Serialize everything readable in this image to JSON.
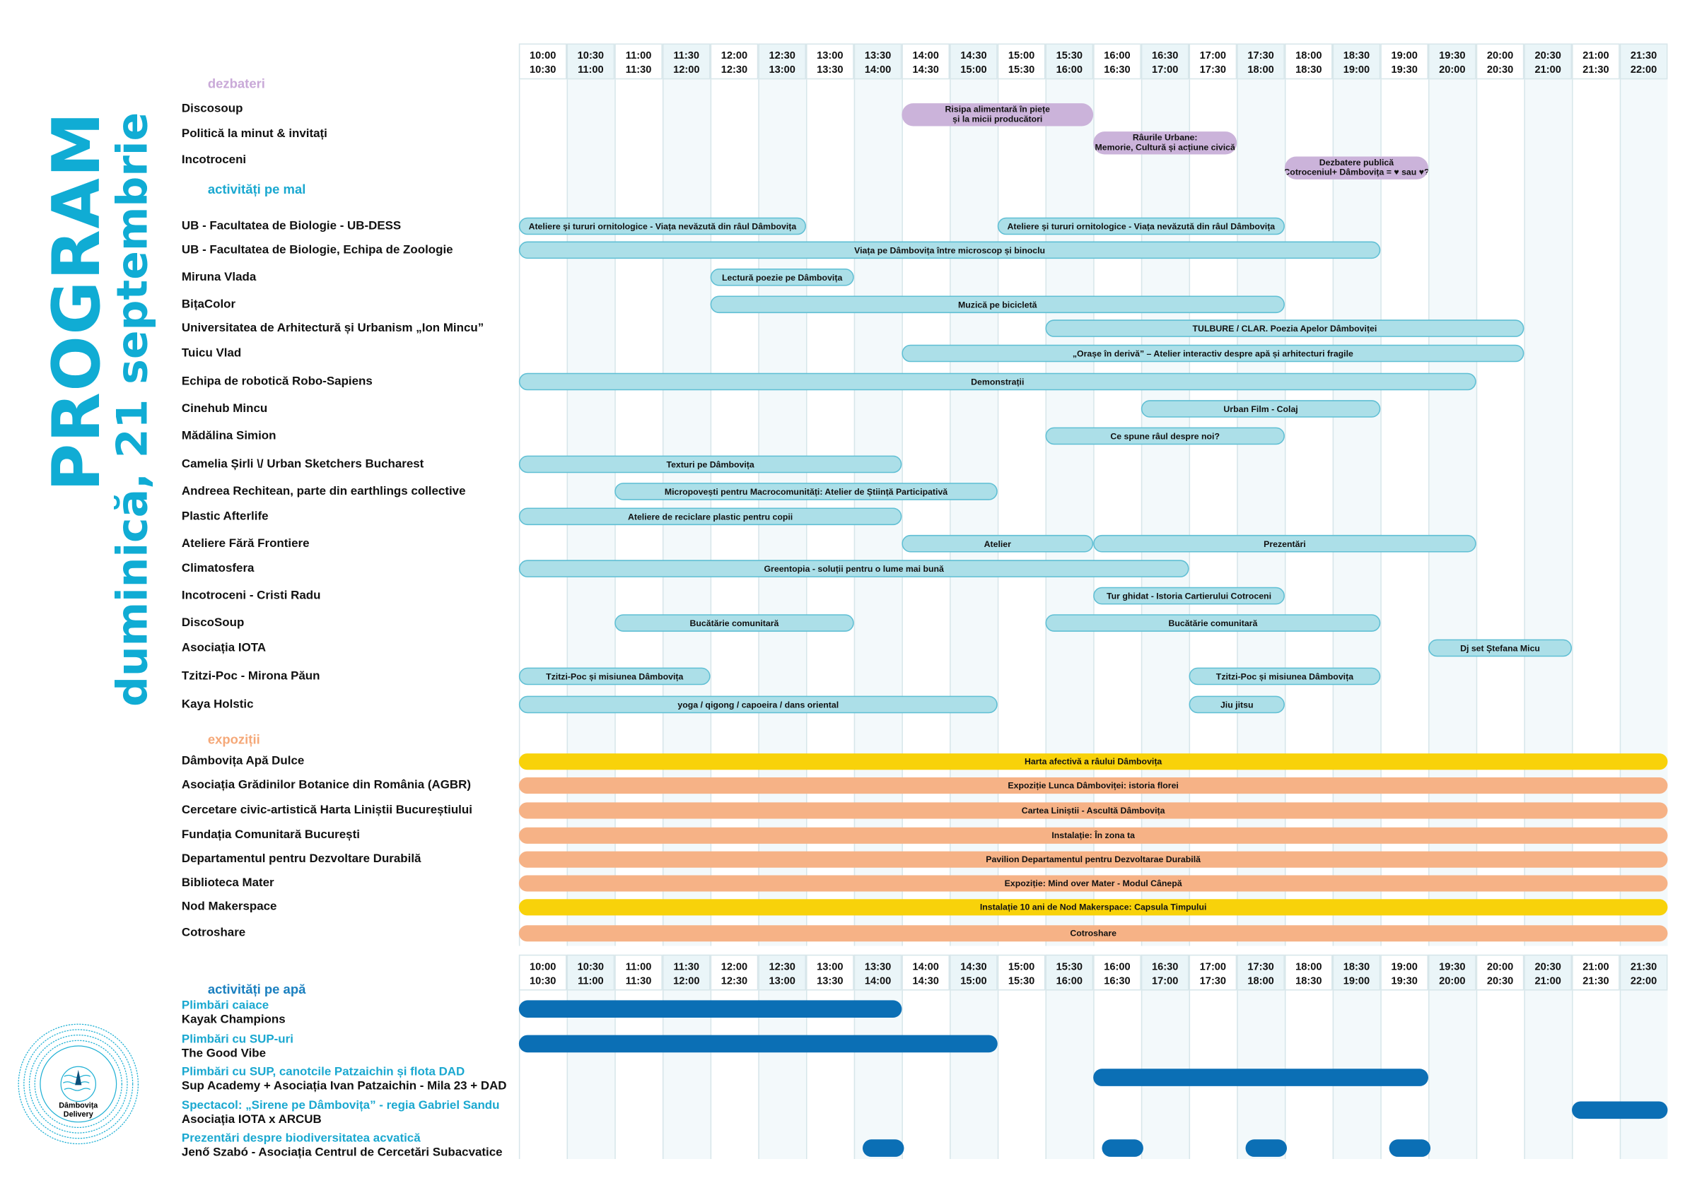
{
  "title": "PROGRAM",
  "subtitle": "duminică, 21 septembrie",
  "logo": {
    "text_line1": "Dâmbovița",
    "text_line2": "Delivery"
  },
  "colors": {
    "accent": "#10acd4",
    "purple": "#cbb3da",
    "blue": "#acdfe8",
    "yellow": "#f8d20a",
    "orange": "#f6b286",
    "water": "#0b6fb5"
  },
  "time_slots": [
    {
      "from": "10:00",
      "to": "10:30"
    },
    {
      "from": "10:30",
      "to": "11:00"
    },
    {
      "from": "11:00",
      "to": "11:30"
    },
    {
      "from": "11:30",
      "to": "12:00"
    },
    {
      "from": "12:00",
      "to": "12:30"
    },
    {
      "from": "12:30",
      "to": "13:00"
    },
    {
      "from": "13:00",
      "to": "13:30"
    },
    {
      "from": "13:30",
      "to": "14:00"
    },
    {
      "from": "14:00",
      "to": "14:30"
    },
    {
      "from": "14:30",
      "to": "15:00"
    },
    {
      "from": "15:00",
      "to": "15:30"
    },
    {
      "from": "15:30",
      "to": "16:00"
    },
    {
      "from": "16:00",
      "to": "16:30"
    },
    {
      "from": "16:30",
      "to": "17:00"
    },
    {
      "from": "17:00",
      "to": "17:30"
    },
    {
      "from": "17:30",
      "to": "18:00"
    },
    {
      "from": "18:00",
      "to": "18:30"
    },
    {
      "from": "18:30",
      "to": "19:00"
    },
    {
      "from": "19:00",
      "to": "19:30"
    },
    {
      "from": "19:30",
      "to": "20:00"
    },
    {
      "from": "20:00",
      "to": "20:30"
    },
    {
      "from": "20:30",
      "to": "21:00"
    },
    {
      "from": "21:00",
      "to": "21:30"
    },
    {
      "from": "21:30",
      "to": "22:00"
    }
  ],
  "sections": [
    {
      "title": "dezbateri",
      "color": "#c9a9d8",
      "style": "purple",
      "rows": [
        {
          "label": "Discosoup",
          "events": [
            {
              "name": "Risipa alimentară în piețe\nși la micii producători",
              "start": "14:00",
              "end": "16:00"
            }
          ]
        },
        {
          "label": "Politică la minut & invitați",
          "events": [
            {
              "name": "Râurile Urbane:\nMemorie, Cultură și acțiune civică",
              "start": "16:00",
              "end": "17:30"
            }
          ]
        },
        {
          "label": "Incotroceni",
          "events": [
            {
              "name": "Dezbatere publică\nCotroceniul+ Dâmbovița = ♥ sau ♥?",
              "start": "18:00",
              "end": "19:30"
            }
          ]
        }
      ]
    },
    {
      "title": "activități pe mal",
      "color": "#1aa8d0",
      "style": "blue",
      "rows": [
        {
          "label": "UB - Facultatea de Biologie - UB-DESS",
          "events": [
            {
              "name": "Ateliere și tururi ornitologice - Viața nevăzută din râul Dâmbovița",
              "start": "10:00",
              "end": "13:00"
            },
            {
              "name": "Ateliere și tururi ornitologice - Viața nevăzută din râul Dâmbovița",
              "start": "15:00",
              "end": "18:00"
            }
          ]
        },
        {
          "label": "UB - Facultatea de Biologie, Echipa de Zoologie",
          "events": [
            {
              "name": "Viața pe Dâmbovița între microscop și binoclu",
              "start": "10:00",
              "end": "19:00"
            }
          ]
        },
        {
          "label": "Miruna Vlada",
          "events": [
            {
              "name": "Lectură poezie pe Dâmbovița",
              "start": "12:00",
              "end": "13:30"
            }
          ]
        },
        {
          "label": "BițaColor",
          "events": [
            {
              "name": "Muzică pe bicicletă",
              "start": "12:00",
              "end": "18:00"
            }
          ]
        },
        {
          "label": "Universitatea de Arhitectură și Urbanism „Ion Mincu”",
          "events": [
            {
              "name": "TULBURE / CLAR. Poezia Apelor Dâmboviței",
              "start": "15:30",
              "end": "20:30"
            }
          ]
        },
        {
          "label": "Tuicu Vlad",
          "events": [
            {
              "name": "„Orașe în derivă” – Atelier interactiv despre apă și arhitecturi fragile",
              "start": "14:00",
              "end": "20:30"
            }
          ]
        },
        {
          "label": "Echipa de robotică Robo-Sapiens",
          "events": [
            {
              "name": "Demonstrații",
              "start": "10:00",
              "end": "20:00"
            }
          ]
        },
        {
          "label": "Cinehub Mincu",
          "events": [
            {
              "name": "Urban Film - Colaj",
              "start": "16:30",
              "end": "19:00"
            }
          ]
        },
        {
          "label": "Mădălina Simion",
          "events": [
            {
              "name": "Ce spune râul despre noi?",
              "start": "15:30",
              "end": "18:00"
            }
          ]
        },
        {
          "label": "Camelia Șirli \\/ Urban Sketchers Bucharest",
          "events": [
            {
              "name": "Texturi pe Dâmbovița",
              "start": "10:00",
              "end": "14:00"
            }
          ]
        },
        {
          "label": "Andreea Rechitean, parte din earthlings collective",
          "events": [
            {
              "name": "Micropovești pentru Macrocomunități: Atelier de Știință Participativă",
              "start": "11:00",
              "end": "15:00"
            }
          ]
        },
        {
          "label": "Plastic Afterlife",
          "events": [
            {
              "name": "Ateliere de reciclare plastic pentru copii",
              "start": "10:00",
              "end": "14:00"
            }
          ]
        },
        {
          "label": "Ateliere Fără Frontiere",
          "events": [
            {
              "name": "Atelier",
              "start": "14:00",
              "end": "16:00"
            },
            {
              "name": "Prezentări",
              "start": "16:00",
              "end": "20:00"
            }
          ]
        },
        {
          "label": "Climatosfera",
          "events": [
            {
              "name": "Greentopia - soluții pentru o lume mai bună",
              "start": "10:00",
              "end": "17:00"
            }
          ]
        },
        {
          "label": "Incotroceni - Cristi Radu",
          "events": [
            {
              "name": "Tur ghidat - Istoria Cartierului Cotroceni",
              "start": "16:00",
              "end": "18:00"
            }
          ]
        },
        {
          "label": "DiscoSoup",
          "events": [
            {
              "name": "Bucătărie comunitară",
              "start": "11:00",
              "end": "13:30"
            },
            {
              "name": "Bucătărie comunitară",
              "start": "15:30",
              "end": "19:00"
            }
          ]
        },
        {
          "label": "Asociația IOTA",
          "events": [
            {
              "name": "Dj set Ștefana Micu",
              "start": "19:30",
              "end": "21:00"
            }
          ]
        },
        {
          "label": "Tzitzi-Poc - Mirona Păun",
          "events": [
            {
              "name": "Tzitzi-Poc și misiunea Dâmbovița",
              "start": "10:00",
              "end": "12:00"
            },
            {
              "name": "Tzitzi-Poc și misiunea Dâmbovița",
              "start": "17:00",
              "end": "19:00"
            }
          ]
        },
        {
          "label": "Kaya Holstic",
          "events": [
            {
              "name": "yoga / qigong / capoeira / dans oriental",
              "start": "10:00",
              "end": "15:00"
            },
            {
              "name": "Jiu jitsu",
              "start": "17:00",
              "end": "18:00"
            }
          ]
        }
      ]
    },
    {
      "title": "expoziții",
      "color": "#f5a878",
      "style": "orange",
      "rows": [
        {
          "label": "Dâmbovița Apă Dulce",
          "events": [
            {
              "name": "Harta afectivă a râului Dâmbovița",
              "start": "10:00",
              "end": "22:00",
              "color": "yellow"
            }
          ]
        },
        {
          "label": "Asociația Grădinilor Botanice din România (AGBR)",
          "events": [
            {
              "name": "Expoziție Lunca Dâmboviței: istoria florei",
              "start": "10:00",
              "end": "22:00"
            }
          ]
        },
        {
          "label": "Cercetare civic-artistică Harta Liniștii Bucureștiului",
          "events": [
            {
              "name": "Cartea Liniștii - Ascultă Dâmbovița",
              "start": "10:00",
              "end": "22:00"
            }
          ]
        },
        {
          "label": "Fundația Comunitară București",
          "events": [
            {
              "name": "Instalație: În zona ta",
              "start": "10:00",
              "end": "22:00"
            }
          ]
        },
        {
          "label": "Departamentul pentru Dezvoltare Durabilă",
          "events": [
            {
              "name": "Pavilion Departamentul pentru Dezvoltarae Durabilă",
              "start": "10:00",
              "end": "22:00"
            }
          ]
        },
        {
          "label": "Biblioteca Mater",
          "events": [
            {
              "name": "Expoziție: Mind over Mater - Modul Cânepă",
              "start": "10:00",
              "end": "22:00"
            }
          ]
        },
        {
          "label": "Nod Makerspace",
          "events": [
            {
              "name": "Instalație 10 ani de Nod Makerspace: Capsula Timpului",
              "start": "10:00",
              "end": "22:00",
              "color": "yellow"
            }
          ]
        },
        {
          "label": "Cotroshare",
          "events": [
            {
              "name": "Cotroshare",
              "start": "10:00",
              "end": "22:00"
            }
          ]
        }
      ]
    }
  ],
  "water": {
    "title": "activități pe apă",
    "color": "#1a7fbf",
    "rows": [
      {
        "activity": "Plimbări caiace",
        "org": "Kayak Champions",
        "events": [
          {
            "start": "10:00",
            "end": "14:00"
          }
        ]
      },
      {
        "activity": "Plimbări cu SUP-uri",
        "org": "The Good Vibe",
        "events": [
          {
            "start": "10:00",
            "end": "15:00"
          }
        ]
      },
      {
        "activity": "Plimbări cu SUP, canotcile Patzaichin și flota DAD",
        "org": "Sup Academy + Asociația Ivan Patzaichin - Mila 23 + DAD",
        "events": [
          {
            "start": "16:00",
            "end": "19:30"
          }
        ]
      },
      {
        "activity": "Spectacol: „Sirene pe Dâmbovița” - regia Gabriel Sandu",
        "org": "Asociația IOTA x ARCUB",
        "events": [
          {
            "start": "21:00",
            "end": "22:00"
          }
        ]
      },
      {
        "activity": "Prezentări despre biodiversitatea acvatică",
        "org": "Jenő Szabó - Asociația Centrul de Cercetări Subacvatice",
        "events": [
          {
            "start": "13:30",
            "end": "14:00"
          },
          {
            "start": "16:00",
            "end": "16:30"
          },
          {
            "start": "17:30",
            "end": "18:00"
          },
          {
            "start": "19:00",
            "end": "19:30"
          }
        ]
      }
    ]
  }
}
